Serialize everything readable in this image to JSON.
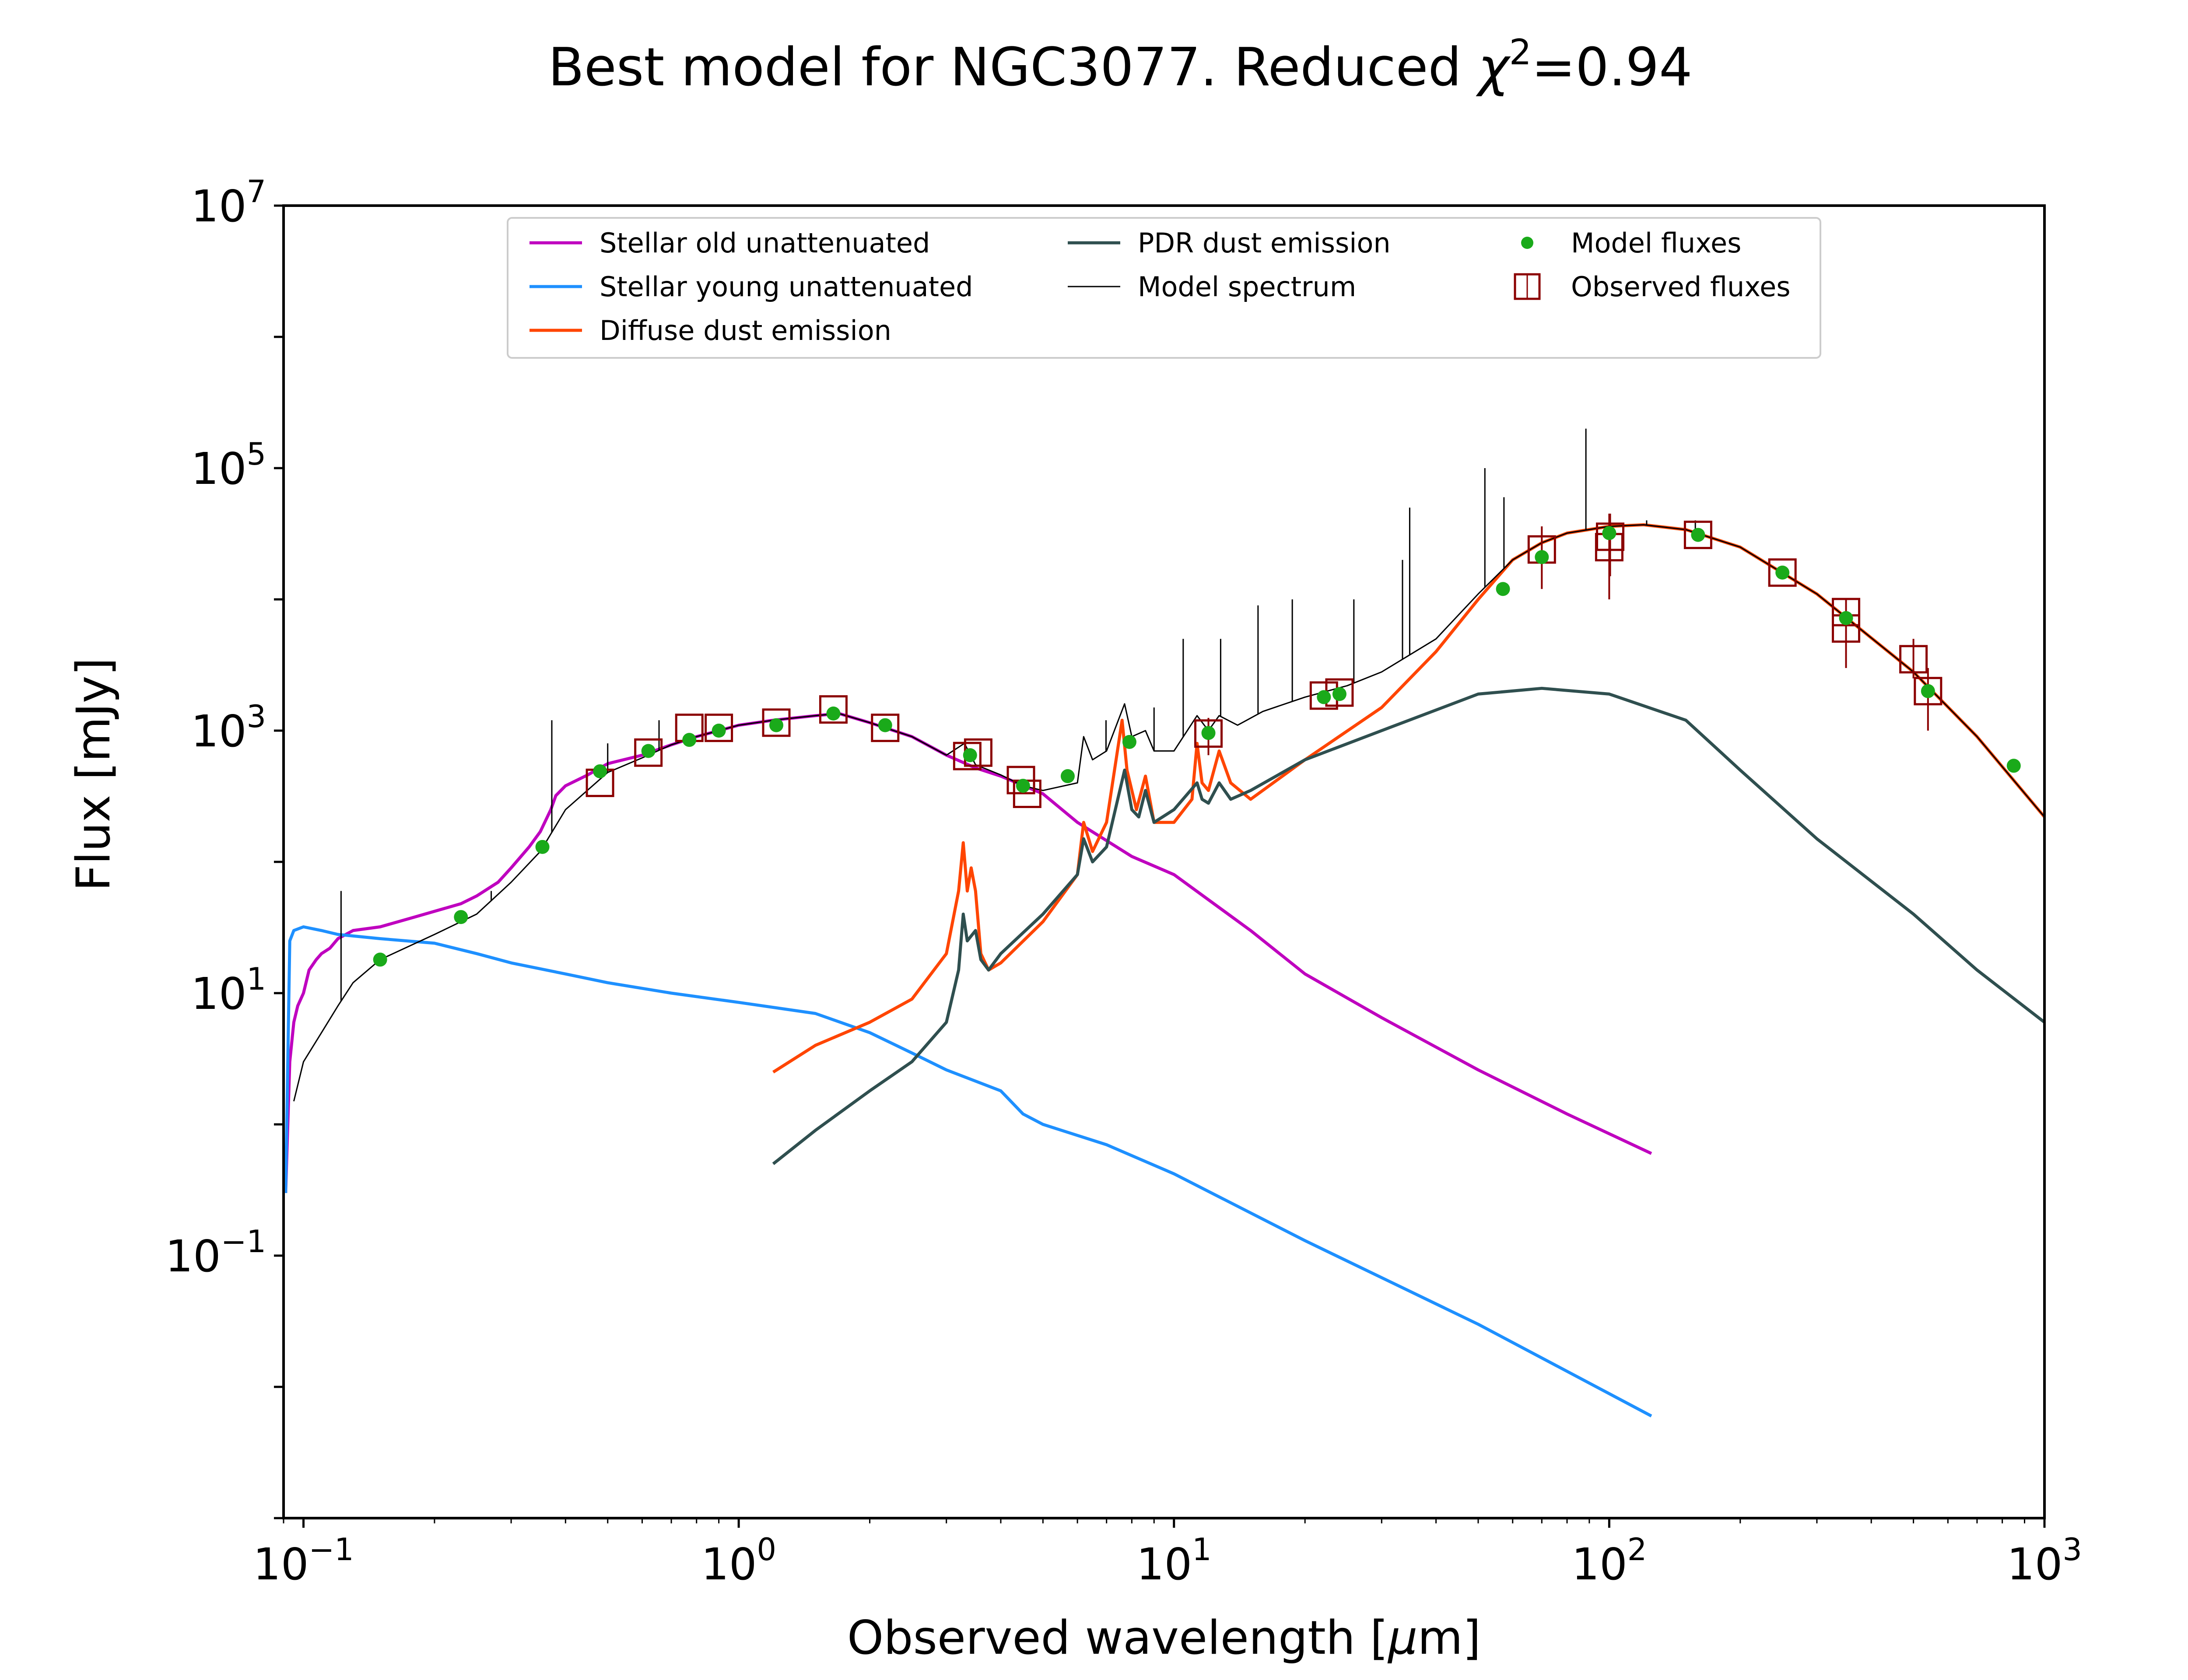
{
  "chart_data": {
    "type": "line",
    "title": "Best model for NGC3077. Reduced χ²=0.94",
    "title_parts": {
      "prefix": "Best model for NGC3077. Reduced ",
      "chi": "χ",
      "sup": "2",
      "suffix": "=0.94"
    },
    "xlabel": "Observed wavelength [μm]",
    "xlabel_parts": {
      "prefix": "Observed wavelength [",
      "mu": "μ",
      "suffix": "m]"
    },
    "ylabel": "Flux [mJy]",
    "x_scale": "log",
    "y_scale": "log",
    "xlim": [
      0.09,
      1000
    ],
    "ylim": [
      0.001,
      10000000
    ],
    "x_ticks": [
      {
        "value": 0.1,
        "base": "10",
        "exp": "−1"
      },
      {
        "value": 1,
        "base": "10",
        "exp": "0"
      },
      {
        "value": 10,
        "base": "10",
        "exp": "1"
      },
      {
        "value": 100,
        "base": "10",
        "exp": "2"
      },
      {
        "value": 1000,
        "base": "10",
        "exp": "3"
      }
    ],
    "y_ticks": [
      {
        "value": 0.1,
        "base": "10",
        "exp": "−1"
      },
      {
        "value": 10,
        "base": "10",
        "exp": "1"
      },
      {
        "value": 1000,
        "base": "10",
        "exp": "3"
      },
      {
        "value": 100000,
        "base": "10",
        "exp": "5"
      },
      {
        "value": 10000000,
        "base": "10",
        "exp": "7"
      }
    ],
    "grid": false,
    "legend_position": "top-center",
    "series": [
      {
        "name": "Stellar old unattenuated",
        "color": "#bf00bf",
        "kind": "line",
        "x": [
          0.091,
          0.093,
          0.095,
          0.097,
          0.1,
          0.103,
          0.107,
          0.11,
          0.115,
          0.12,
          0.13,
          0.15,
          0.18,
          0.2,
          0.23,
          0.25,
          0.28,
          0.3,
          0.33,
          0.35,
          0.37,
          0.38,
          0.4,
          0.45,
          0.5,
          0.6,
          0.7,
          0.8,
          0.9,
          1.0,
          1.2,
          1.5,
          1.7,
          2.0,
          2.5,
          3.0,
          3.5,
          4.0,
          5.0,
          6.0,
          8.0,
          10.0,
          15.0,
          20.0,
          30.0,
          50.0,
          80.0,
          125.0
        ],
        "y": [
          0.3,
          3.0,
          6.0,
          8.0,
          10.0,
          15.0,
          18.0,
          20.0,
          22.0,
          26.0,
          30.0,
          32.0,
          38.0,
          42.0,
          48.0,
          55.0,
          70.0,
          90.0,
          130.0,
          170.0,
          250.0,
          320.0,
          380.0,
          460.0,
          560.0,
          650.0,
          780.0,
          900.0,
          1000.0,
          1100.0,
          1200.0,
          1300.0,
          1350.0,
          1150.0,
          900.0,
          650.0,
          520.0,
          450.0,
          330.0,
          200.0,
          110.0,
          80.0,
          30.0,
          14.0,
          6.5,
          2.6,
          1.2,
          0.6
        ]
      },
      {
        "name": "Stellar young unattenuated",
        "color": "#1e90ff",
        "kind": "line",
        "x": [
          0.091,
          0.093,
          0.095,
          0.1,
          0.11,
          0.12,
          0.15,
          0.2,
          0.25,
          0.3,
          0.4,
          0.5,
          0.7,
          1.0,
          1.5,
          2.0,
          2.5,
          3.0,
          4.0,
          4.5,
          5.0,
          7.0,
          10.0,
          20.0,
          50.0,
          125.0
        ],
        "y": [
          0.3,
          25.0,
          30.0,
          32.0,
          30.0,
          28.0,
          26.0,
          24.0,
          20.0,
          17.0,
          14.0,
          12.0,
          10.0,
          8.5,
          7.0,
          5.0,
          3.5,
          2.6,
          1.8,
          1.2,
          1.0,
          0.7,
          0.42,
          0.13,
          0.03,
          0.006
        ]
      },
      {
        "name": "Diffuse dust emission",
        "color": "#ff4500",
        "kind": "line",
        "x": [
          1.2,
          1.5,
          2.0,
          2.5,
          3.0,
          3.2,
          3.28,
          3.35,
          3.42,
          3.5,
          3.6,
          3.75,
          4.0,
          5.0,
          6.0,
          6.2,
          6.5,
          7.0,
          7.6,
          7.8,
          8.2,
          8.6,
          9.0,
          10.0,
          11.0,
          11.3,
          11.6,
          12.0,
          12.7,
          13.5,
          15.0,
          20.0,
          30.0,
          40.0,
          50.0,
          60.0,
          70.0,
          80.0,
          100.0,
          120.0,
          150.0,
          200.0,
          300.0,
          500.0,
          700.0,
          1000.0
        ],
        "y": [
          2.5,
          4.0,
          6.0,
          9.0,
          20.0,
          60.0,
          140.0,
          60.0,
          90.0,
          60.0,
          20.0,
          15.0,
          17.0,
          35.0,
          80.0,
          200.0,
          120.0,
          200.0,
          1200.0,
          500.0,
          250.0,
          450.0,
          200.0,
          200.0,
          300.0,
          800.0,
          400.0,
          350.0,
          700.0,
          400.0,
          300.0,
          600.0,
          1500.0,
          4000.0,
          10000.0,
          20000.0,
          27000.0,
          32000.0,
          36000.0,
          37000.0,
          34000.0,
          25000.0,
          11000.0,
          2800.0,
          900.0,
          220.0
        ]
      },
      {
        "name": "PDR dust emission",
        "color": "#2f4f4f",
        "kind": "line",
        "x": [
          1.2,
          1.5,
          2.0,
          2.5,
          3.0,
          3.2,
          3.28,
          3.35,
          3.5,
          3.6,
          3.75,
          4.0,
          5.0,
          6.0,
          6.2,
          6.5,
          7.0,
          7.7,
          8.0,
          8.3,
          8.6,
          9.0,
          10.0,
          11.3,
          11.6,
          12.0,
          12.7,
          13.5,
          15.0,
          20.0,
          30.0,
          50.0,
          70.0,
          100.0,
          150.0,
          200.0,
          300.0,
          500.0,
          700.0,
          1000.0
        ],
        "y": [
          0.5,
          0.9,
          1.8,
          3.0,
          6.0,
          15.0,
          40.0,
          25.0,
          30.0,
          18.0,
          15.0,
          20.0,
          40.0,
          80.0,
          150.0,
          100.0,
          130.0,
          500.0,
          250.0,
          220.0,
          350.0,
          200.0,
          250.0,
          400.0,
          300.0,
          280.0,
          400.0,
          300.0,
          350.0,
          600.0,
          1000.0,
          1900.0,
          2100.0,
          1900.0,
          1200.0,
          500.0,
          150.0,
          40.0,
          15.0,
          6.0
        ]
      },
      {
        "name": "Model spectrum",
        "color": "#000000",
        "kind": "thin-line",
        "x": [
          0.095,
          0.1,
          0.11,
          0.12,
          0.13,
          0.15,
          0.2,
          0.25,
          0.3,
          0.35,
          0.4,
          0.5,
          0.6,
          0.7,
          0.8,
          0.9,
          1.0,
          1.2,
          1.5,
          1.7,
          2.0,
          2.5,
          3.0,
          3.3,
          3.5,
          4.0,
          4.5,
          5.0,
          6.0,
          6.2,
          6.5,
          7.0,
          7.7,
          8.0,
          8.6,
          9.0,
          10.0,
          11.3,
          12.0,
          12.7,
          14.0,
          16.0,
          20.0,
          25.0,
          30.0,
          40.0,
          50.0,
          60.0,
          70.0,
          80.0,
          100.0,
          120.0,
          150.0,
          200.0,
          300.0,
          500.0,
          700.0,
          1000.0
        ],
        "y": [
          1.5,
          3.0,
          5.0,
          8.0,
          12.0,
          18.0,
          28.0,
          40.0,
          70.0,
          120.0,
          250.0,
          480.0,
          620.0,
          780.0,
          900.0,
          1000.0,
          1100.0,
          1200.0,
          1300.0,
          1350.0,
          1150.0,
          900.0,
          650.0,
          800.0,
          550.0,
          460.0,
          380.0,
          350.0,
          400.0,
          900.0,
          600.0,
          700.0,
          1600.0,
          900.0,
          1000.0,
          700.0,
          700.0,
          1300.0,
          1000.0,
          1300.0,
          1100.0,
          1400.0,
          1800.0,
          2200.0,
          2800.0,
          5000.0,
          11000.0,
          20000.0,
          27000.0,
          32000.0,
          36000.0,
          37000.0,
          34000.0,
          25000.0,
          11000.0,
          2800.0,
          900.0,
          220.0
        ]
      }
    ],
    "model_spectrum_emission_lines": [
      {
        "x": 0.122,
        "top": 60.0
      },
      {
        "x": 0.27,
        "top": 60.0
      },
      {
        "x": 0.372,
        "top": 1200.0
      },
      {
        "x": 0.5,
        "top": 800.0
      },
      {
        "x": 0.656,
        "top": 1200.0
      },
      {
        "x": 6.98,
        "top": 1200.0
      },
      {
        "x": 9.0,
        "top": 1500.0
      },
      {
        "x": 10.5,
        "top": 5000.0
      },
      {
        "x": 12.8,
        "top": 5000.0
      },
      {
        "x": 15.6,
        "top": 9000.0
      },
      {
        "x": 18.7,
        "top": 10000.0
      },
      {
        "x": 25.9,
        "top": 10000.0
      },
      {
        "x": 33.5,
        "top": 20000.0
      },
      {
        "x": 34.8,
        "top": 50000.0
      },
      {
        "x": 51.8,
        "top": 100000.0
      },
      {
        "x": 57.3,
        "top": 60000.0
      },
      {
        "x": 88.4,
        "top": 200000.0
      },
      {
        "x": 121.9,
        "top": 40000.0
      },
      {
        "x": 157.7,
        "top": 40000.0
      }
    ],
    "observed_fluxes": {
      "name": "Observed fluxes",
      "color": "#8b0000",
      "points": [
        {
          "x": 0.48,
          "y": 400,
          "err": [
            0,
            0
          ]
        },
        {
          "x": 0.62,
          "y": 680,
          "err": [
            0,
            0
          ]
        },
        {
          "x": 0.77,
          "y": 1050,
          "err": [
            0,
            0
          ]
        },
        {
          "x": 0.9,
          "y": 1050,
          "err": [
            0,
            0
          ]
        },
        {
          "x": 1.22,
          "y": 1150,
          "err": [
            0,
            0
          ]
        },
        {
          "x": 1.65,
          "y": 1450,
          "err": [
            0,
            0
          ]
        },
        {
          "x": 2.17,
          "y": 1050,
          "err": [
            0,
            0
          ]
        },
        {
          "x": 3.35,
          "y": 640,
          "err": [
            0,
            0
          ]
        },
        {
          "x": 3.55,
          "y": 680,
          "err": [
            0,
            0
          ]
        },
        {
          "x": 4.45,
          "y": 420,
          "err": [
            0,
            0
          ]
        },
        {
          "x": 4.6,
          "y": 330,
          "err": [
            0,
            0
          ]
        },
        {
          "x": 12.0,
          "y": 950,
          "err": [
            300,
            300
          ]
        },
        {
          "x": 22.1,
          "y": 1850,
          "err": [
            0,
            0
          ]
        },
        {
          "x": 24.0,
          "y": 1950,
          "err": [
            0,
            0
          ]
        },
        {
          "x": 70.0,
          "y": 24000,
          "err": [
            12000,
            12000
          ]
        },
        {
          "x": 100.0,
          "y": 25000,
          "err": [
            15000,
            20000
          ]
        },
        {
          "x": 100.5,
          "y": 30000,
          "err": [
            15000,
            15000
          ]
        },
        {
          "x": 160.0,
          "y": 31000,
          "err": [
            0,
            0
          ]
        },
        {
          "x": 250.0,
          "y": 16000,
          "err": [
            0,
            0
          ]
        },
        {
          "x": 350.0,
          "y": 8000,
          "err": [
            0,
            0
          ]
        },
        {
          "x": 350.0,
          "y": 6000,
          "err": [
            3000,
            4000
          ]
        },
        {
          "x": 500.0,
          "y": 3500,
          "err": [
            1000,
            1500
          ]
        },
        {
          "x": 540.0,
          "y": 2000,
          "err": [
            1000,
            1000
          ]
        }
      ]
    },
    "model_fluxes": {
      "name": "Model fluxes",
      "color": "#1aaa1a",
      "points": [
        {
          "x": 0.15,
          "y": 18
        },
        {
          "x": 0.23,
          "y": 38
        },
        {
          "x": 0.354,
          "y": 130
        },
        {
          "x": 0.48,
          "y": 490
        },
        {
          "x": 0.62,
          "y": 700
        },
        {
          "x": 0.77,
          "y": 850
        },
        {
          "x": 0.9,
          "y": 1000
        },
        {
          "x": 1.22,
          "y": 1100
        },
        {
          "x": 1.65,
          "y": 1350
        },
        {
          "x": 2.17,
          "y": 1100
        },
        {
          "x": 3.4,
          "y": 650
        },
        {
          "x": 4.5,
          "y": 380
        },
        {
          "x": 5.7,
          "y": 450
        },
        {
          "x": 7.9,
          "y": 820
        },
        {
          "x": 12.0,
          "y": 960
        },
        {
          "x": 22.1,
          "y": 1800
        },
        {
          "x": 24.0,
          "y": 1900
        },
        {
          "x": 57.0,
          "y": 12000
        },
        {
          "x": 70.0,
          "y": 21000
        },
        {
          "x": 100.0,
          "y": 32000
        },
        {
          "x": 160.0,
          "y": 31000
        },
        {
          "x": 250.0,
          "y": 16000
        },
        {
          "x": 350.0,
          "y": 7200
        },
        {
          "x": 540.0,
          "y": 2000
        },
        {
          "x": 850.0,
          "y": 540
        }
      ]
    },
    "legend": [
      {
        "label": "Stellar old unattenuated",
        "color": "#bf00bf",
        "kind": "line"
      },
      {
        "label": "Stellar young unattenuated",
        "color": "#1e90ff",
        "kind": "line"
      },
      {
        "label": "Diffuse dust emission",
        "color": "#ff4500",
        "kind": "line"
      },
      {
        "label": "PDR dust emission",
        "color": "#2f4f4f",
        "kind": "line"
      },
      {
        "label": "Model spectrum",
        "color": "#000000",
        "kind": "thin-line"
      },
      {
        "label": "Model fluxes",
        "color": "#1aaa1a",
        "kind": "dot"
      },
      {
        "label": "Observed fluxes",
        "color": "#8b0000",
        "kind": "square"
      }
    ]
  }
}
